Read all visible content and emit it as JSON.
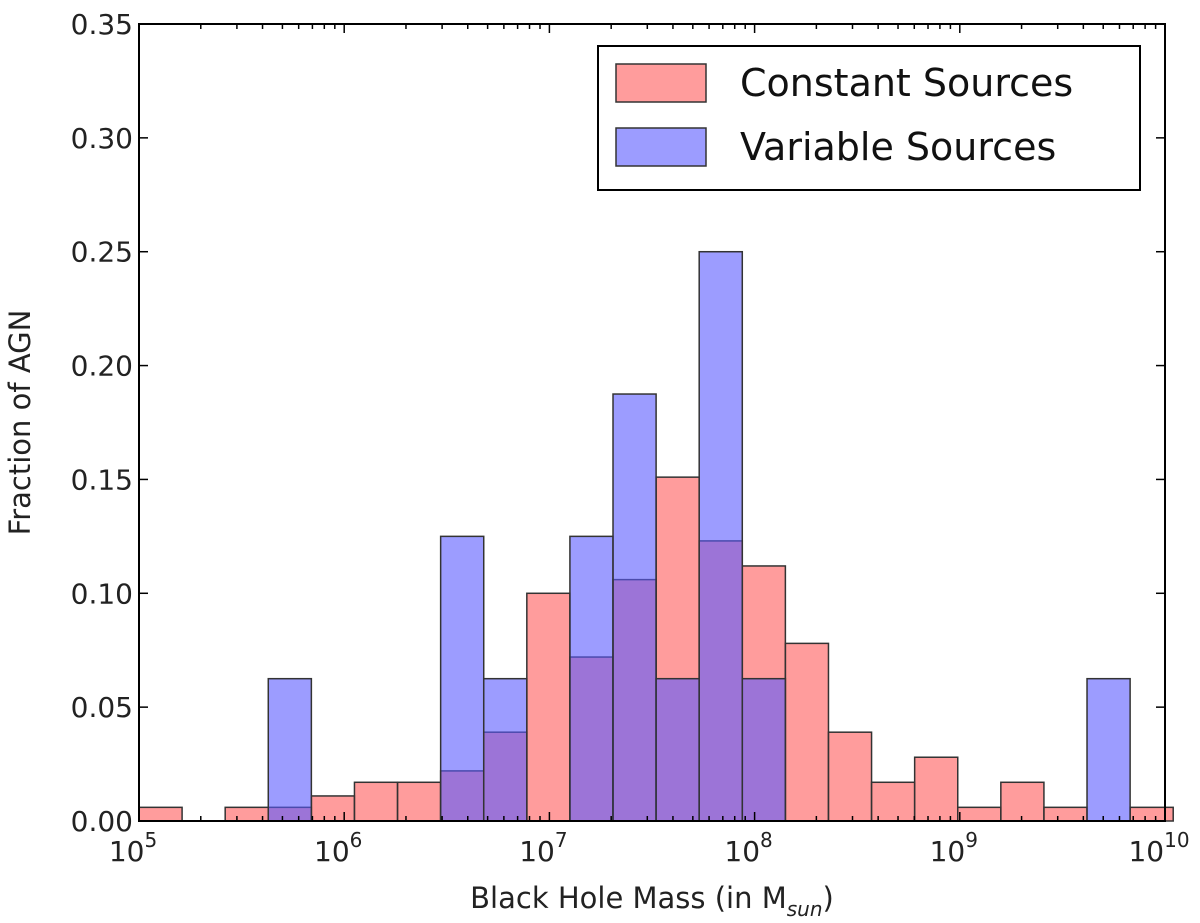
{
  "chart_data": {
    "type": "bar",
    "title": "",
    "xlabel": "Black Hole Mass (in M",
    "xlabel_subscript": "sun",
    "xlabel_close": ")",
    "ylabel": "Fraction of AGN",
    "x_scale": "log10",
    "xlim_log10": [
      5,
      10
    ],
    "ylim": [
      0,
      0.35
    ],
    "bin_width_log10": 0.21,
    "x_ticks": [
      {
        "base": "10",
        "exp": "5",
        "log": 5
      },
      {
        "base": "10",
        "exp": "6",
        "log": 6
      },
      {
        "base": "10",
        "exp": "7",
        "log": 7
      },
      {
        "base": "10",
        "exp": "8",
        "log": 8
      },
      {
        "base": "10",
        "exp": "9",
        "log": 9
      },
      {
        "base": "10",
        "exp": "10",
        "log": 10
      }
    ],
    "y_ticks": [
      "0.00",
      "0.05",
      "0.10",
      "0.15",
      "0.20",
      "0.25",
      "0.30",
      "0.35"
    ],
    "y_tick_values": [
      0,
      0.05,
      0.1,
      0.15,
      0.2,
      0.25,
      0.3,
      0.35
    ],
    "legend_position": "top-right",
    "series": [
      {
        "name": "Constant Sources",
        "color": "#ff5a5a",
        "opacity": 0.6,
        "bins_log10_left": [
          5.0,
          5.42,
          5.63,
          5.84,
          6.05,
          6.26,
          6.47,
          6.68,
          6.89,
          7.1,
          7.31,
          7.52,
          7.73,
          7.94,
          8.15,
          8.36,
          8.57,
          8.78,
          8.99,
          9.2,
          9.41,
          9.83
        ],
        "values": [
          0.006,
          0.006,
          0.006,
          0.011,
          0.017,
          0.017,
          0.022,
          0.039,
          0.1,
          0.072,
          0.106,
          0.151,
          0.123,
          0.112,
          0.078,
          0.039,
          0.017,
          0.028,
          0.006,
          0.017,
          0.006,
          0.006
        ]
      },
      {
        "name": "Variable Sources",
        "color": "#5a5aff",
        "opacity": 0.6,
        "bins_log10_left": [
          5.63,
          6.47,
          6.68,
          7.1,
          7.31,
          7.52,
          7.73,
          7.94,
          9.62
        ],
        "values": [
          0.0625,
          0.125,
          0.0625,
          0.125,
          0.1875,
          0.0625,
          0.25,
          0.0625,
          0.0625
        ]
      }
    ]
  }
}
